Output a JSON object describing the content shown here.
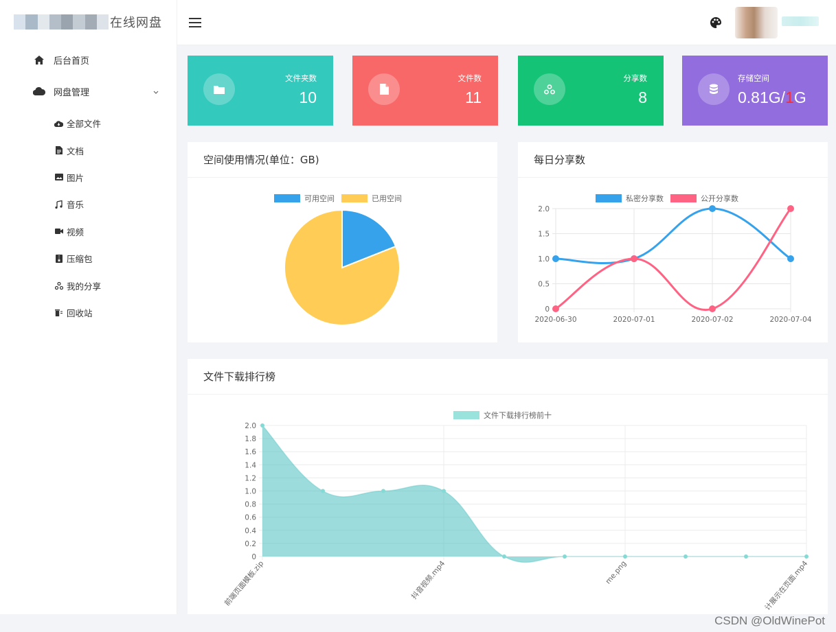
{
  "app": {
    "logo_text": "在线网盘",
    "watermark": "CSDN @OldWinePot"
  },
  "sidebar": {
    "items": [
      {
        "label": "后台首页",
        "icon": "home-icon"
      },
      {
        "label": "网盘管理",
        "icon": "cloud-icon"
      }
    ],
    "sub_items": [
      {
        "label": "全部文件",
        "icon": "cloud-small-icon"
      },
      {
        "label": "文档",
        "icon": "document-icon"
      },
      {
        "label": "图片",
        "icon": "image-icon"
      },
      {
        "label": "音乐",
        "icon": "music-icon"
      },
      {
        "label": "视频",
        "icon": "video-icon"
      },
      {
        "label": "压缩包",
        "icon": "archive-icon"
      },
      {
        "label": "我的分享",
        "icon": "share-icon"
      },
      {
        "label": "回收站",
        "icon": "trash-icon"
      }
    ]
  },
  "stats": {
    "folders": {
      "label": "文件夹数",
      "value": "10",
      "color": "#33c9bd"
    },
    "files": {
      "label": "文件数",
      "value": "11",
      "color": "#f96868"
    },
    "shares": {
      "label": "分享数",
      "value": "8",
      "color": "#15c377"
    },
    "storage": {
      "label": "存储空间",
      "value_used": "0.81G/",
      "value_sep": "1",
      "value_total": "G",
      "color": "#926dde"
    }
  },
  "panels": {
    "space": {
      "title": "空间使用情况(单位：GB)"
    },
    "daily": {
      "title": "每日分享数"
    },
    "ranking": {
      "title": "文件下载排行榜"
    }
  },
  "chart_data": [
    {
      "type": "pie",
      "title": "空间使用情况(单位：GB)",
      "labels": [
        "可用空间",
        "已用空间"
      ],
      "values": [
        0.19,
        0.81
      ],
      "colors": [
        "#36a2eb",
        "#ffcd56"
      ]
    },
    {
      "type": "line",
      "title": "每日分享数",
      "categories": [
        "2020-06-30",
        "2020-07-01",
        "2020-07-02",
        "2020-07-04"
      ],
      "series": [
        {
          "name": "私密分享数",
          "values": [
            1,
            1,
            2,
            1
          ],
          "color": "#36a2eb"
        },
        {
          "name": "公开分享数",
          "values": [
            0,
            1,
            0,
            2
          ],
          "color": "#ff6384"
        }
      ],
      "ylim": [
        0,
        2
      ],
      "yticks": [
        "0",
        "0.5",
        "1.0",
        "1.5",
        "2.0"
      ]
    },
    {
      "type": "area",
      "title": "文件下载排行榜",
      "series": [
        {
          "name": "文件下载排行榜前十",
          "values": [
            2,
            1,
            1,
            1,
            0,
            0,
            0,
            0,
            0,
            0
          ],
          "color": "#4bc0c0"
        }
      ],
      "visible_tick_labels": [
        {
          "index": 0,
          "label": "前端页面模板.zip"
        },
        {
          "index": 3,
          "label": "抖音视频.mp4"
        },
        {
          "index": 6,
          "label": "me.png"
        },
        {
          "index": 9,
          "label": "计展示在页面.mp4"
        }
      ],
      "ylim": [
        0,
        2
      ],
      "yticks": [
        "0",
        "0.2",
        "0.4",
        "0.6",
        "0.8",
        "1.0",
        "1.2",
        "1.4",
        "1.6",
        "1.8",
        "2.0"
      ]
    }
  ]
}
